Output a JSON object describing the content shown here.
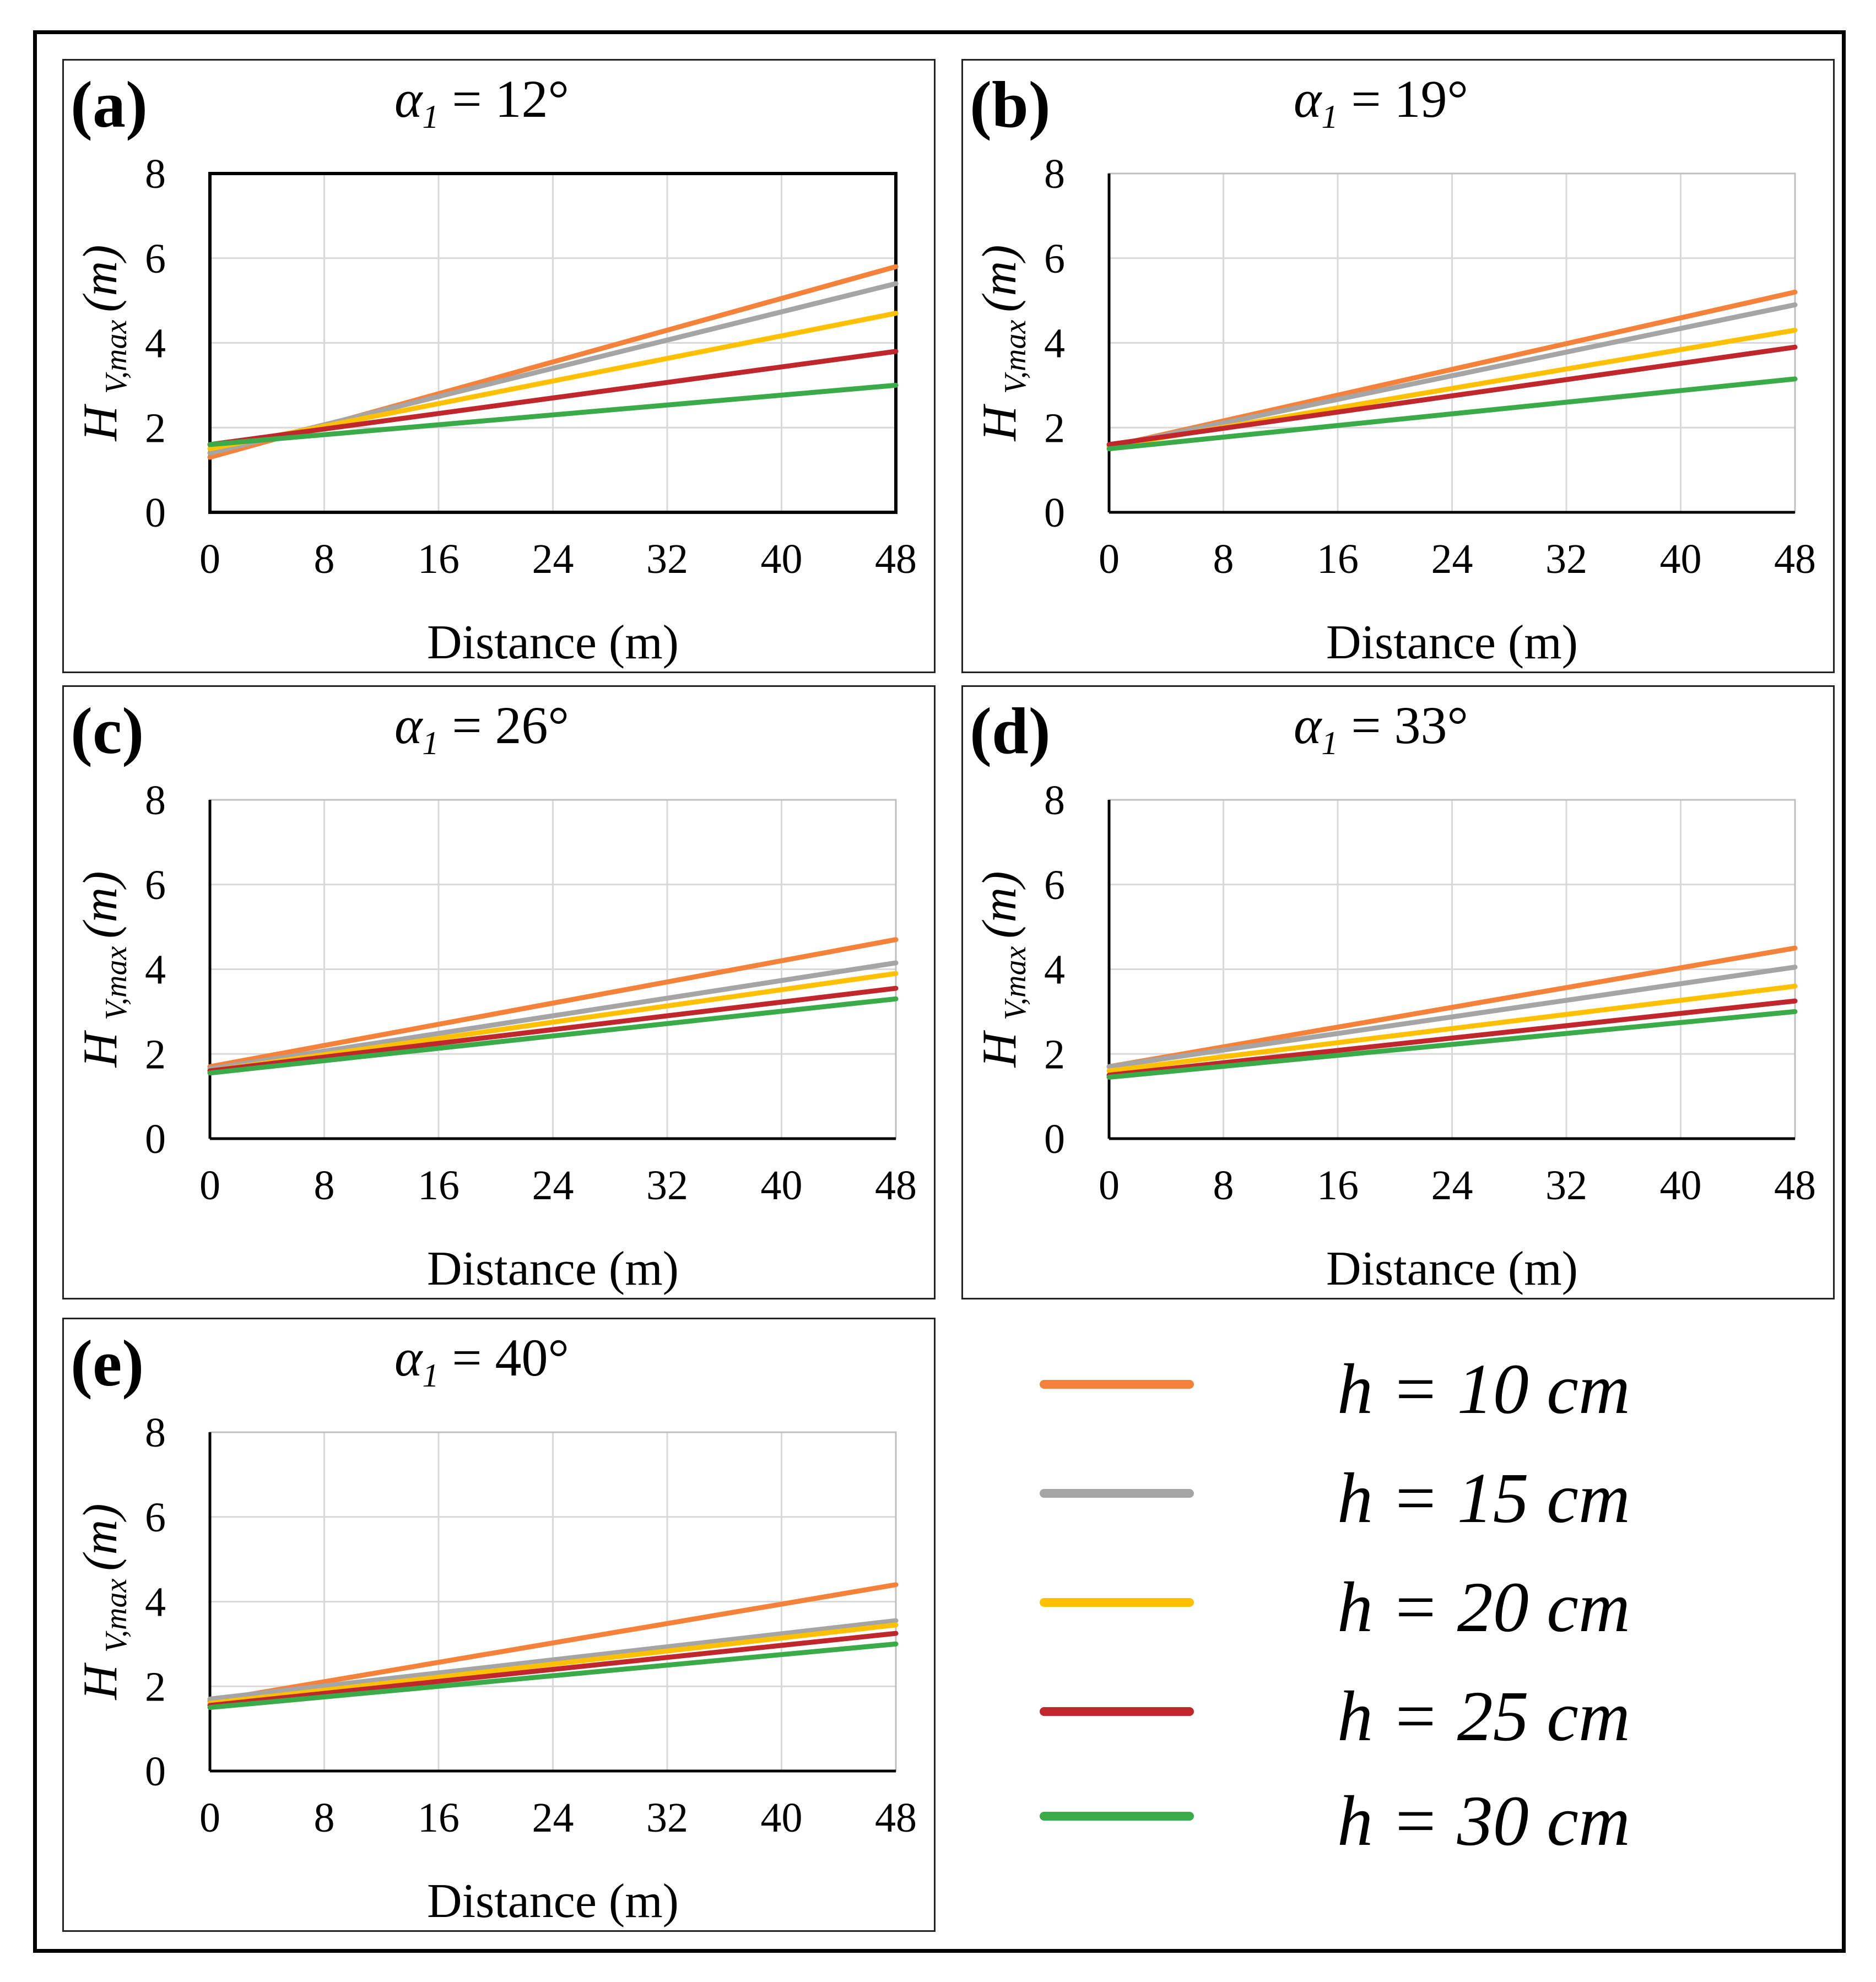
{
  "legend": [
    {
      "label": "h = 10 cm",
      "color": "#F4823A"
    },
    {
      "label": "h = 15 cm",
      "color": "#A5A5A5"
    },
    {
      "label": "h = 20 cm",
      "color": "#FFC000"
    },
    {
      "label": "h = 25 cm",
      "color": "#C0272D"
    },
    {
      "label": "h = 30 cm",
      "color": "#3BAA48"
    }
  ],
  "chart_data": [
    {
      "type": "line",
      "panel": "(a)",
      "title_var": "α",
      "title_sub": "1",
      "title_value": " = 12°",
      "xlabel": "Distance (m)",
      "ylabel_main": "H",
      "ylabel_sub": "V,max",
      "ylabel_unit": "(m)",
      "x_ticks": [
        "0",
        "8",
        "16",
        "24",
        "32",
        "40",
        "48"
      ],
      "y_ticks": [
        "0",
        "2",
        "4",
        "6",
        "8"
      ],
      "xlim": [
        0,
        48
      ],
      "ylim": [
        0,
        8
      ],
      "grid": true,
      "frame": "thick",
      "series": [
        {
          "name": "h = 10 cm",
          "x": [
            0,
            48
          ],
          "y": [
            1.3,
            5.8
          ]
        },
        {
          "name": "h = 15 cm",
          "x": [
            0,
            48
          ],
          "y": [
            1.4,
            5.4
          ]
        },
        {
          "name": "h = 20 cm",
          "x": [
            0,
            48
          ],
          "y": [
            1.5,
            4.7
          ]
        },
        {
          "name": "h = 25 cm",
          "x": [
            0,
            48
          ],
          "y": [
            1.6,
            3.8
          ]
        },
        {
          "name": "h = 30 cm",
          "x": [
            0,
            48
          ],
          "y": [
            1.6,
            3.0
          ]
        }
      ]
    },
    {
      "type": "line",
      "panel": "(b)",
      "title_var": "α",
      "title_sub": "1",
      "title_value": " = 19°",
      "xlabel": "Distance (m)",
      "ylabel_main": "H",
      "ylabel_sub": "V,max",
      "ylabel_unit": "(m)",
      "x_ticks": [
        "0",
        "8",
        "16",
        "24",
        "32",
        "40",
        "48"
      ],
      "y_ticks": [
        "0",
        "2",
        "4",
        "6",
        "8"
      ],
      "xlim": [
        0,
        48
      ],
      "ylim": [
        0,
        8
      ],
      "grid": true,
      "frame": "thin",
      "series": [
        {
          "name": "h = 10 cm",
          "x": [
            0,
            48
          ],
          "y": [
            1.55,
            5.2
          ]
        },
        {
          "name": "h = 15 cm",
          "x": [
            0,
            48
          ],
          "y": [
            1.55,
            4.9
          ]
        },
        {
          "name": "h = 20 cm",
          "x": [
            0,
            48
          ],
          "y": [
            1.55,
            4.3
          ]
        },
        {
          "name": "h = 25 cm",
          "x": [
            0,
            48
          ],
          "y": [
            1.6,
            3.9
          ]
        },
        {
          "name": "h = 30 cm",
          "x": [
            0,
            48
          ],
          "y": [
            1.5,
            3.15
          ]
        }
      ]
    },
    {
      "type": "line",
      "panel": "(c)",
      "title_var": "α",
      "title_sub": "1",
      "title_value": " = 26°",
      "xlabel": "Distance (m)",
      "ylabel_main": "H",
      "ylabel_sub": "V,max",
      "ylabel_unit": "(m)",
      "x_ticks": [
        "0",
        "8",
        "16",
        "24",
        "32",
        "40",
        "48"
      ],
      "y_ticks": [
        "0",
        "2",
        "4",
        "6",
        "8"
      ],
      "xlim": [
        0,
        48
      ],
      "ylim": [
        0,
        8
      ],
      "grid": true,
      "frame": "thin",
      "series": [
        {
          "name": "h = 10 cm",
          "x": [
            0,
            48
          ],
          "y": [
            1.7,
            4.7
          ]
        },
        {
          "name": "h = 15 cm",
          "x": [
            0,
            48
          ],
          "y": [
            1.65,
            4.15
          ]
        },
        {
          "name": "h = 20 cm",
          "x": [
            0,
            48
          ],
          "y": [
            1.6,
            3.9
          ]
        },
        {
          "name": "h = 25 cm",
          "x": [
            0,
            48
          ],
          "y": [
            1.6,
            3.55
          ]
        },
        {
          "name": "h = 30 cm",
          "x": [
            0,
            48
          ],
          "y": [
            1.55,
            3.3
          ]
        }
      ]
    },
    {
      "type": "line",
      "panel": "(d)",
      "title_var": "α",
      "title_sub": "1",
      "title_value": " = 33°",
      "xlabel": "Distance (m)",
      "ylabel_main": "H",
      "ylabel_sub": "V,max",
      "ylabel_unit": "(m)",
      "x_ticks": [
        "0",
        "8",
        "16",
        "24",
        "32",
        "40",
        "48"
      ],
      "y_ticks": [
        "0",
        "2",
        "4",
        "6",
        "8"
      ],
      "xlim": [
        0,
        48
      ],
      "ylim": [
        0,
        8
      ],
      "grid": true,
      "frame": "thin",
      "series": [
        {
          "name": "h = 10 cm",
          "x": [
            0,
            48
          ],
          "y": [
            1.7,
            4.5
          ]
        },
        {
          "name": "h = 15 cm",
          "x": [
            0,
            48
          ],
          "y": [
            1.7,
            4.05
          ]
        },
        {
          "name": "h = 20 cm",
          "x": [
            0,
            48
          ],
          "y": [
            1.6,
            3.6
          ]
        },
        {
          "name": "h = 25 cm",
          "x": [
            0,
            48
          ],
          "y": [
            1.5,
            3.25
          ]
        },
        {
          "name": "h = 30 cm",
          "x": [
            0,
            48
          ],
          "y": [
            1.45,
            3.0
          ]
        }
      ]
    },
    {
      "type": "line",
      "panel": "(e)",
      "title_var": "α",
      "title_sub": "1",
      "title_value": " = 40°",
      "xlabel": "Distance (m)",
      "ylabel_main": "H",
      "ylabel_sub": "V,max",
      "ylabel_unit": "(m)",
      "x_ticks": [
        "0",
        "8",
        "16",
        "24",
        "32",
        "40",
        "48"
      ],
      "y_ticks": [
        "0",
        "2",
        "4",
        "6",
        "8"
      ],
      "xlim": [
        0,
        48
      ],
      "ylim": [
        0,
        8
      ],
      "grid": true,
      "frame": "thin",
      "series": [
        {
          "name": "h = 10 cm",
          "x": [
            0,
            48
          ],
          "y": [
            1.65,
            4.4
          ]
        },
        {
          "name": "h = 15 cm",
          "x": [
            0,
            48
          ],
          "y": [
            1.7,
            3.55
          ]
        },
        {
          "name": "h = 20 cm",
          "x": [
            0,
            48
          ],
          "y": [
            1.6,
            3.45
          ]
        },
        {
          "name": "h = 25 cm",
          "x": [
            0,
            48
          ],
          "y": [
            1.55,
            3.25
          ]
        },
        {
          "name": "h = 30 cm",
          "x": [
            0,
            48
          ],
          "y": [
            1.5,
            3.0
          ]
        }
      ]
    }
  ]
}
